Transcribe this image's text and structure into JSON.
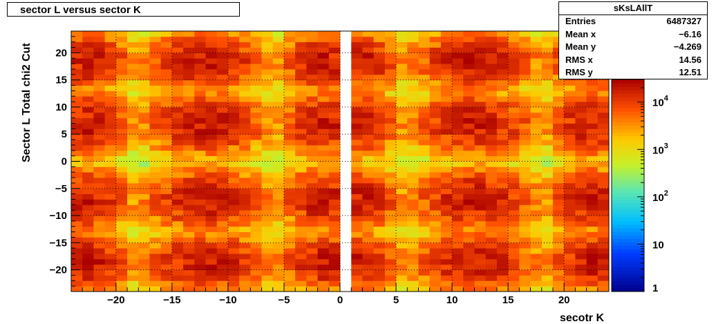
{
  "chart_data": {
    "type": "heatmap",
    "title": "sector L versus sector K",
    "xlabel": "secotr K",
    "ylabel": "Sector L  Total chi2 Cut",
    "xlim": [
      -24,
      24
    ],
    "ylim": [
      -24,
      24
    ],
    "bins": 48,
    "x_ticks": [
      -20,
      -15,
      -10,
      -5,
      0,
      5,
      10,
      15,
      20
    ],
    "y_ticks": [
      -20,
      -15,
      -10,
      -5,
      0,
      5,
      10,
      15,
      20
    ],
    "x_tick_labels": [
      "−20",
      "−15",
      "−10",
      "−5",
      "0",
      "5",
      "10",
      "15",
      "20"
    ],
    "y_tick_labels": [
      "−20",
      "−15",
      "−10",
      "−5",
      "0",
      "5",
      "10",
      "15",
      "20"
    ],
    "grid": true,
    "z_scale": "log",
    "z_range": [
      1,
      30000
    ],
    "palette_labels": [
      {
        "base": "10",
        "exp": "4",
        "value": 10000
      },
      {
        "base": "10",
        "exp": "3",
        "value": 1000
      },
      {
        "base": "10",
        "exp": "2",
        "value": 100
      },
      {
        "base": "10",
        "exp": "",
        "value": 10
      },
      {
        "base": "1",
        "exp": "",
        "value": 1
      }
    ],
    "clusters_x_centers": [
      -22.5,
      -12,
      -1.5,
      1.5,
      12,
      22.5
    ],
    "clusters_y_centers": [
      -18.5,
      -7,
      7,
      18.5
    ],
    "peak_value": 18000,
    "empty_band_x": [
      0,
      0.5
    ],
    "stats": {
      "name": "sKsLAllT",
      "entries_label": "Entries",
      "entries": "6487327",
      "meanx_label": "Mean x",
      "meanx": "−6.16",
      "meany_label": "Mean y",
      "meany": "−4.269",
      "rmsx_label": "RMS x",
      "rmsx": "14.56",
      "rmsy_label": "RMS y",
      "rmsy": "12.51"
    }
  }
}
